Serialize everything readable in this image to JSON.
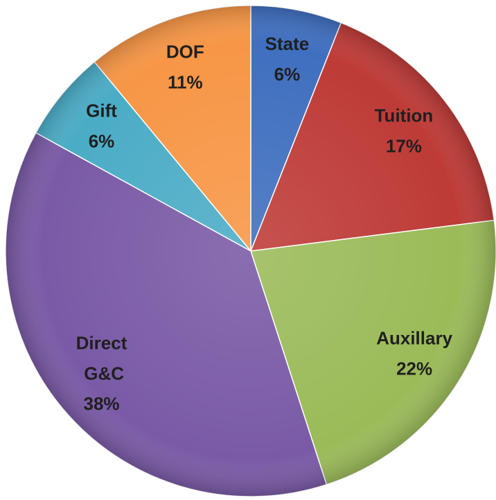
{
  "chart_data": {
    "type": "pie",
    "categories": [
      "State",
      "Tuition",
      "Auxillary",
      "Direct G&C",
      "Gift",
      "DOF"
    ],
    "values": [
      6,
      17,
      22,
      38,
      6,
      11
    ],
    "value_labels": [
      "6%",
      "17%",
      "22%",
      "38%",
      "6%",
      "11%"
    ],
    "colors": [
      "#3f6fbf",
      "#be3b37",
      "#9bbb59",
      "#7a5aa6",
      "#4bacc6",
      "#f79646"
    ]
  }
}
